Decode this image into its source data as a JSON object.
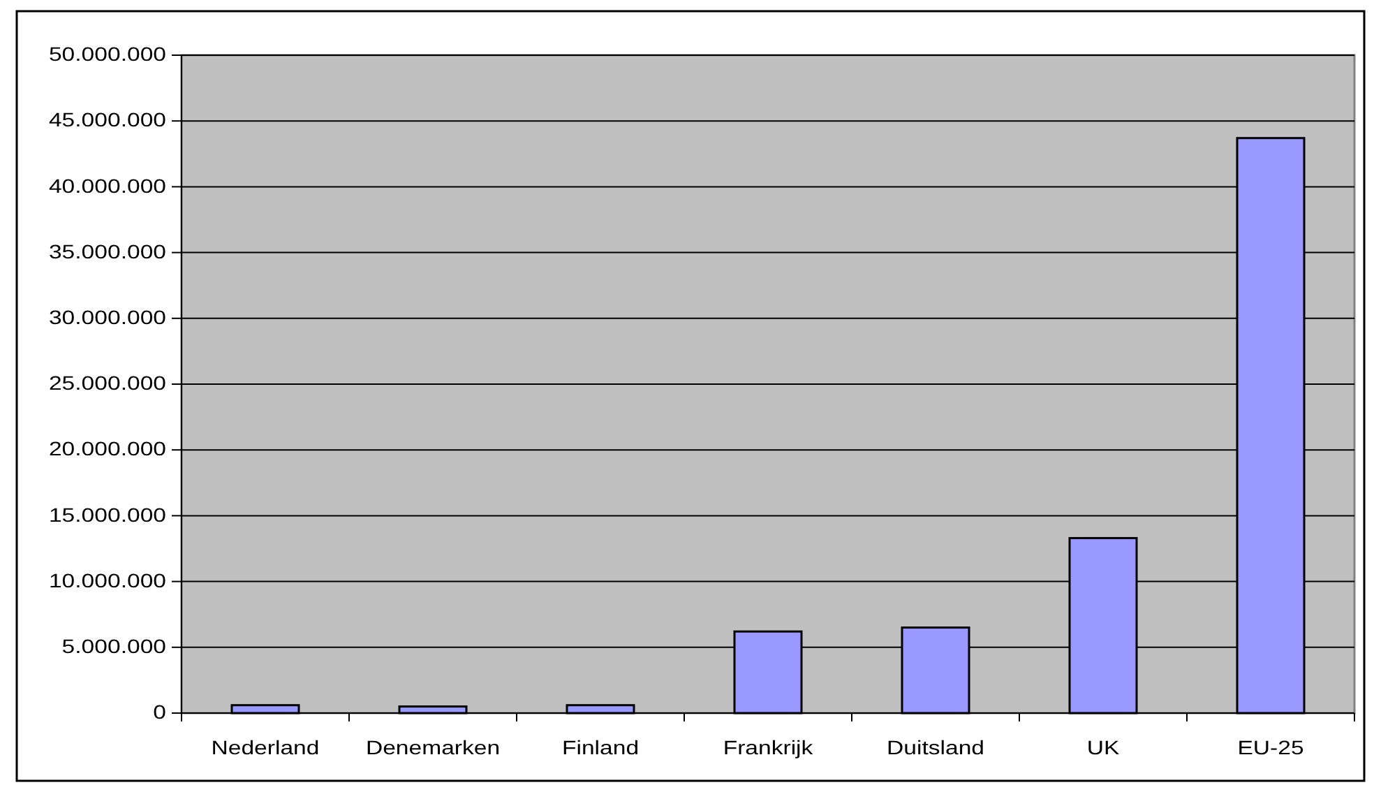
{
  "chart_data": {
    "type": "bar",
    "categories": [
      "Nederland",
      "Denemarken",
      "Finland",
      "Frankrijk",
      "Duitsland",
      "UK",
      "EU-25"
    ],
    "values": [
      600000,
      500000,
      600000,
      6200000,
      6500000,
      13300000,
      43700000
    ],
    "color": "#9999ff",
    "ylim": [
      0,
      50000000
    ],
    "yticks": [
      0,
      {
        "value": 5000000,
        "label": "5.000.000"
      },
      {
        "value": 10000000,
        "label": "10.000.000"
      },
      {
        "value": 15000000,
        "label": "15.000.000"
      },
      {
        "value": 20000000,
        "label": "20.000.000"
      },
      {
        "value": 25000000,
        "label": "25.000.000"
      },
      {
        "value": 30000000,
        "label": "30.000.000"
      },
      {
        "value": 35000000,
        "label": "35.000.000"
      },
      {
        "value": 40000000,
        "label": "40.000.000"
      },
      {
        "value": 45000000,
        "label": "45.000.000"
      },
      {
        "value": 50000000,
        "label": "50.000.000"
      }
    ],
    "grid": "y"
  }
}
